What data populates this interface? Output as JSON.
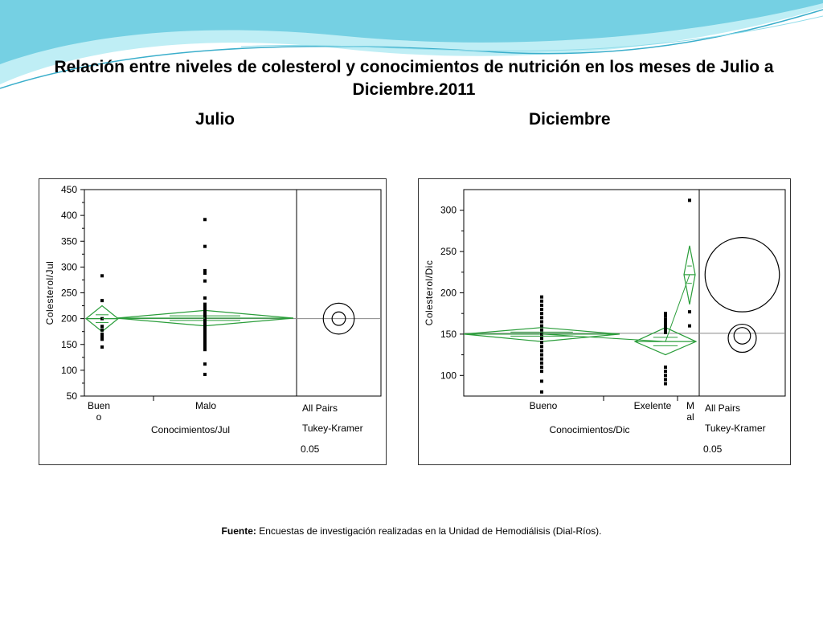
{
  "slide": {
    "title": "Relación entre niveles de colesterol y conocimientos de nutrición en los meses de Julio a Diciembre.2011",
    "subtitle_left": "Julio",
    "subtitle_right": "Diciembre",
    "source_label": "Fuente:",
    "source_text": "Encuestas de investigación realizadas en la Unidad de Hemodiálisis (Dial-Ríos)."
  },
  "colors": {
    "diamond": "#2a9d3a",
    "points": "#000000",
    "wave_light": "#bfeef5",
    "wave_dark": "#5cc6dc"
  },
  "chart_data": [
    {
      "type": "scatter",
      "subtype": "oneway-means-diamonds",
      "ylabel": "Colesterol/Jul",
      "xlabel": "Conocimientos/Jul",
      "ylim": [
        50,
        450
      ],
      "yticks": [
        50,
        100,
        150,
        200,
        250,
        300,
        350,
        400,
        450
      ],
      "categories": [
        "Buen\no",
        "Malo"
      ],
      "groups": [
        {
          "name": "Bueno",
          "mean": 200,
          "upper": 225,
          "lower": 175,
          "points": [
            283,
            235,
            200,
            185,
            178,
            170,
            165,
            160,
            145
          ]
        },
        {
          "name": "Malo",
          "mean": 201,
          "upper": 216,
          "lower": 186,
          "points": [
            392,
            340,
            293,
            288,
            273,
            240,
            228,
            225,
            220,
            215,
            210,
            205,
            200,
            195,
            190,
            185,
            180,
            175,
            170,
            165,
            160,
            155,
            150,
            145,
            140,
            112,
            92
          ]
        }
      ],
      "grand_mean": 200,
      "comparison": {
        "label1": "All Pairs",
        "label2": "Tukey-Kramer",
        "label3": "0.05",
        "circles": [
          {
            "center": 200,
            "radius": 30
          },
          {
            "center": 200,
            "radius": 13
          }
        ]
      }
    },
    {
      "type": "scatter",
      "subtype": "oneway-means-diamonds",
      "ylabel": "Colesterol/Dic",
      "xlabel": "Conocimientos/Dic",
      "ylim": [
        75,
        325
      ],
      "yticks": [
        100,
        150,
        200,
        250,
        300
      ],
      "categories": [
        "Bueno",
        "Exelente",
        "M\nal"
      ],
      "groups": [
        {
          "name": "Bueno",
          "mean": 150,
          "upper": 158,
          "lower": 141,
          "points": [
            195,
            190,
            185,
            180,
            175,
            170,
            165,
            160,
            155,
            150,
            145,
            140,
            135,
            130,
            125,
            120,
            115,
            110,
            105,
            93,
            80
          ]
        },
        {
          "name": "Exelente",
          "mean": 141,
          "upper": 158,
          "lower": 125,
          "points": [
            175,
            172,
            168,
            165,
            162,
            160,
            158,
            155,
            152,
            110,
            105,
            100,
            95,
            90
          ]
        },
        {
          "name": "Mal",
          "mean": 222,
          "upper": 257,
          "lower": 186,
          "points": [
            312,
            177,
            160
          ]
        }
      ],
      "grand_mean": 151,
      "comparison": {
        "label1": "All Pairs",
        "label2": "Tukey-Kramer",
        "label3": "0.05",
        "circles": [
          {
            "center": 222,
            "radius": 45
          },
          {
            "center": 145,
            "radius": 17
          },
          {
            "center": 148,
            "radius": 10
          }
        ]
      }
    }
  ]
}
